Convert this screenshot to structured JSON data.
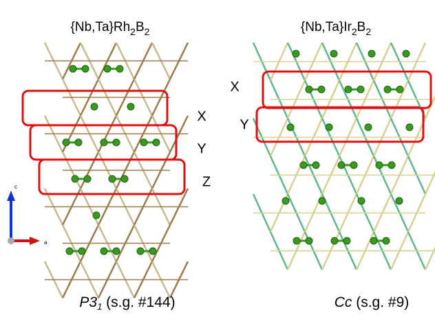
{
  "left_panel": {
    "title": [
      "{Nb,Ta}Rh",
      "2",
      "B",
      "2"
    ],
    "layer_labels": [
      "X",
      "Y",
      "Z"
    ],
    "caption": [
      "P3",
      "1",
      " (s.g. #144)"
    ]
  },
  "right_panel": {
    "title": [
      "{Nb,Ta}Ir",
      "2",
      "B",
      "2"
    ],
    "layer_labels": [
      "X",
      "Y"
    ],
    "caption": [
      "Cc",
      " (s.g. #9)"
    ]
  },
  "axes": {
    "vertical": "c",
    "horizontal": "a"
  }
}
